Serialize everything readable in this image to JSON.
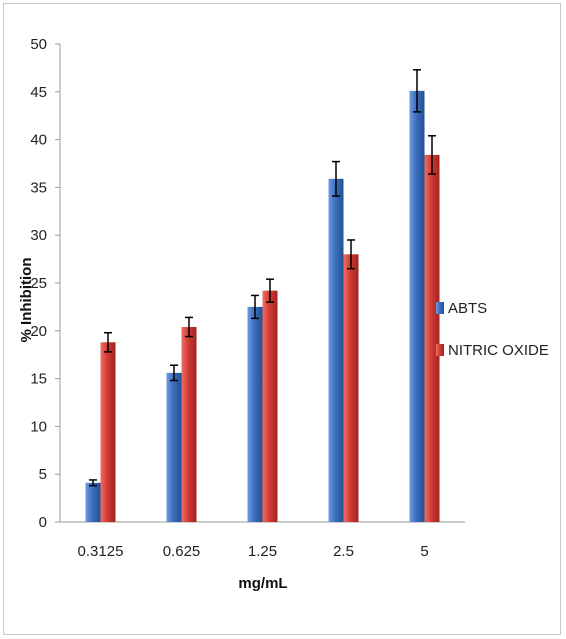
{
  "chart_data": {
    "type": "bar",
    "xlabel": "mg/mL",
    "ylabel": "% Inhibition",
    "categories": [
      "0.3125",
      "0.625",
      "1.25",
      "2.5",
      "5"
    ],
    "ylim": [
      0,
      50
    ],
    "yticks": [
      0,
      5,
      10,
      15,
      20,
      25,
      30,
      35,
      40,
      45,
      50
    ],
    "grid": false,
    "legend_position": "right",
    "error_bars": true,
    "series": [
      {
        "name": "ABTS",
        "color": "#3c6fc0",
        "values": [
          4.1,
          15.6,
          22.5,
          35.9,
          45.1
        ],
        "errors": [
          0.3,
          0.8,
          1.2,
          1.8,
          2.2
        ]
      },
      {
        "name": "NITRIC OXIDE",
        "color": "#d23b34",
        "values": [
          18.8,
          20.4,
          24.2,
          28.0,
          38.4
        ],
        "errors": [
          1.0,
          1.0,
          1.2,
          1.5,
          2.0
        ]
      }
    ]
  }
}
